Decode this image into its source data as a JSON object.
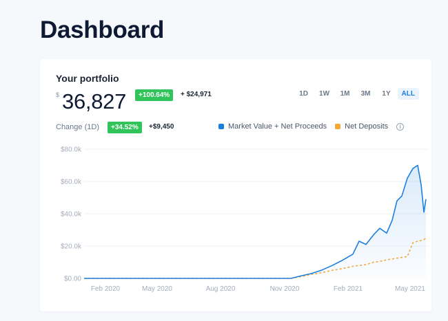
{
  "page": {
    "title": "Dashboard"
  },
  "portfolio": {
    "title": "Your portfolio",
    "currency_symbol": "$",
    "value": "36,827",
    "total_change_pct": "+100.64%",
    "total_change_abs": "+ $24,971",
    "change_label": "Change (1D)",
    "day_change_pct": "+34.52%",
    "day_change_abs": "+$9,450"
  },
  "ranges": [
    {
      "label": "1D",
      "active": false
    },
    {
      "label": "1W",
      "active": false
    },
    {
      "label": "1M",
      "active": false
    },
    {
      "label": "3M",
      "active": false
    },
    {
      "label": "1Y",
      "active": false
    },
    {
      "label": "ALL",
      "active": true
    }
  ],
  "legend": [
    {
      "label": "Market Value + Net Proceeds",
      "color": "#1b7fe0"
    },
    {
      "label": "Net Deposits",
      "color": "#f2a73b"
    }
  ],
  "colors": {
    "positive_badge": "#31c45b",
    "accent": "#1b7fe0",
    "deposits": "#f2a73b"
  },
  "chart_data": {
    "type": "line",
    "title": "Your portfolio",
    "xlabel": "",
    "ylabel": "",
    "ylim": [
      0,
      80000
    ],
    "y_ticks": [
      "$0.00",
      "$20.0k",
      "$40.0k",
      "$60.0k",
      "$80.0k"
    ],
    "x_ticks": [
      "Feb 2020",
      "May 2020",
      "Aug 2020",
      "Nov 2020",
      "Feb 2021",
      "May 2021"
    ],
    "grid": true,
    "legend_position": "top-right",
    "x": [
      "2020-01",
      "2020-02",
      "2020-03",
      "2020-04",
      "2020-05",
      "2020-06",
      "2020-07",
      "2020-08",
      "2020-09",
      "2020-10",
      "2020-11",
      "2020-11-15",
      "2020-12",
      "2020-12-15",
      "2021-01",
      "2021-01-15",
      "2021-02",
      "2021-02-10",
      "2021-02-20",
      "2021-03",
      "2021-03-10",
      "2021-03-20",
      "2021-03-28",
      "2021-04-05",
      "2021-04-12",
      "2021-04-20",
      "2021-04-28",
      "2021-05-05",
      "2021-05-10",
      "2021-05-14",
      "2021-05-17"
    ],
    "series": [
      {
        "name": "Market Value + Net Proceeds",
        "values": [
          0,
          0,
          0,
          0,
          0,
          0,
          0,
          0,
          0,
          0,
          0,
          1500,
          3000,
          5000,
          8000,
          11000,
          15000,
          23000,
          21000,
          27000,
          31000,
          28000,
          36000,
          48000,
          51000,
          62000,
          68000,
          70000,
          58000,
          41000,
          49000
        ]
      },
      {
        "name": "Net Deposits",
        "values": [
          0,
          0,
          0,
          0,
          0,
          0,
          0,
          0,
          0,
          0,
          0,
          1000,
          2500,
          3500,
          5000,
          6000,
          7500,
          8000,
          8500,
          10000,
          10500,
          11500,
          12000,
          12500,
          13000,
          13500,
          22000,
          23000,
          23500,
          24000,
          25000
        ]
      }
    ]
  }
}
